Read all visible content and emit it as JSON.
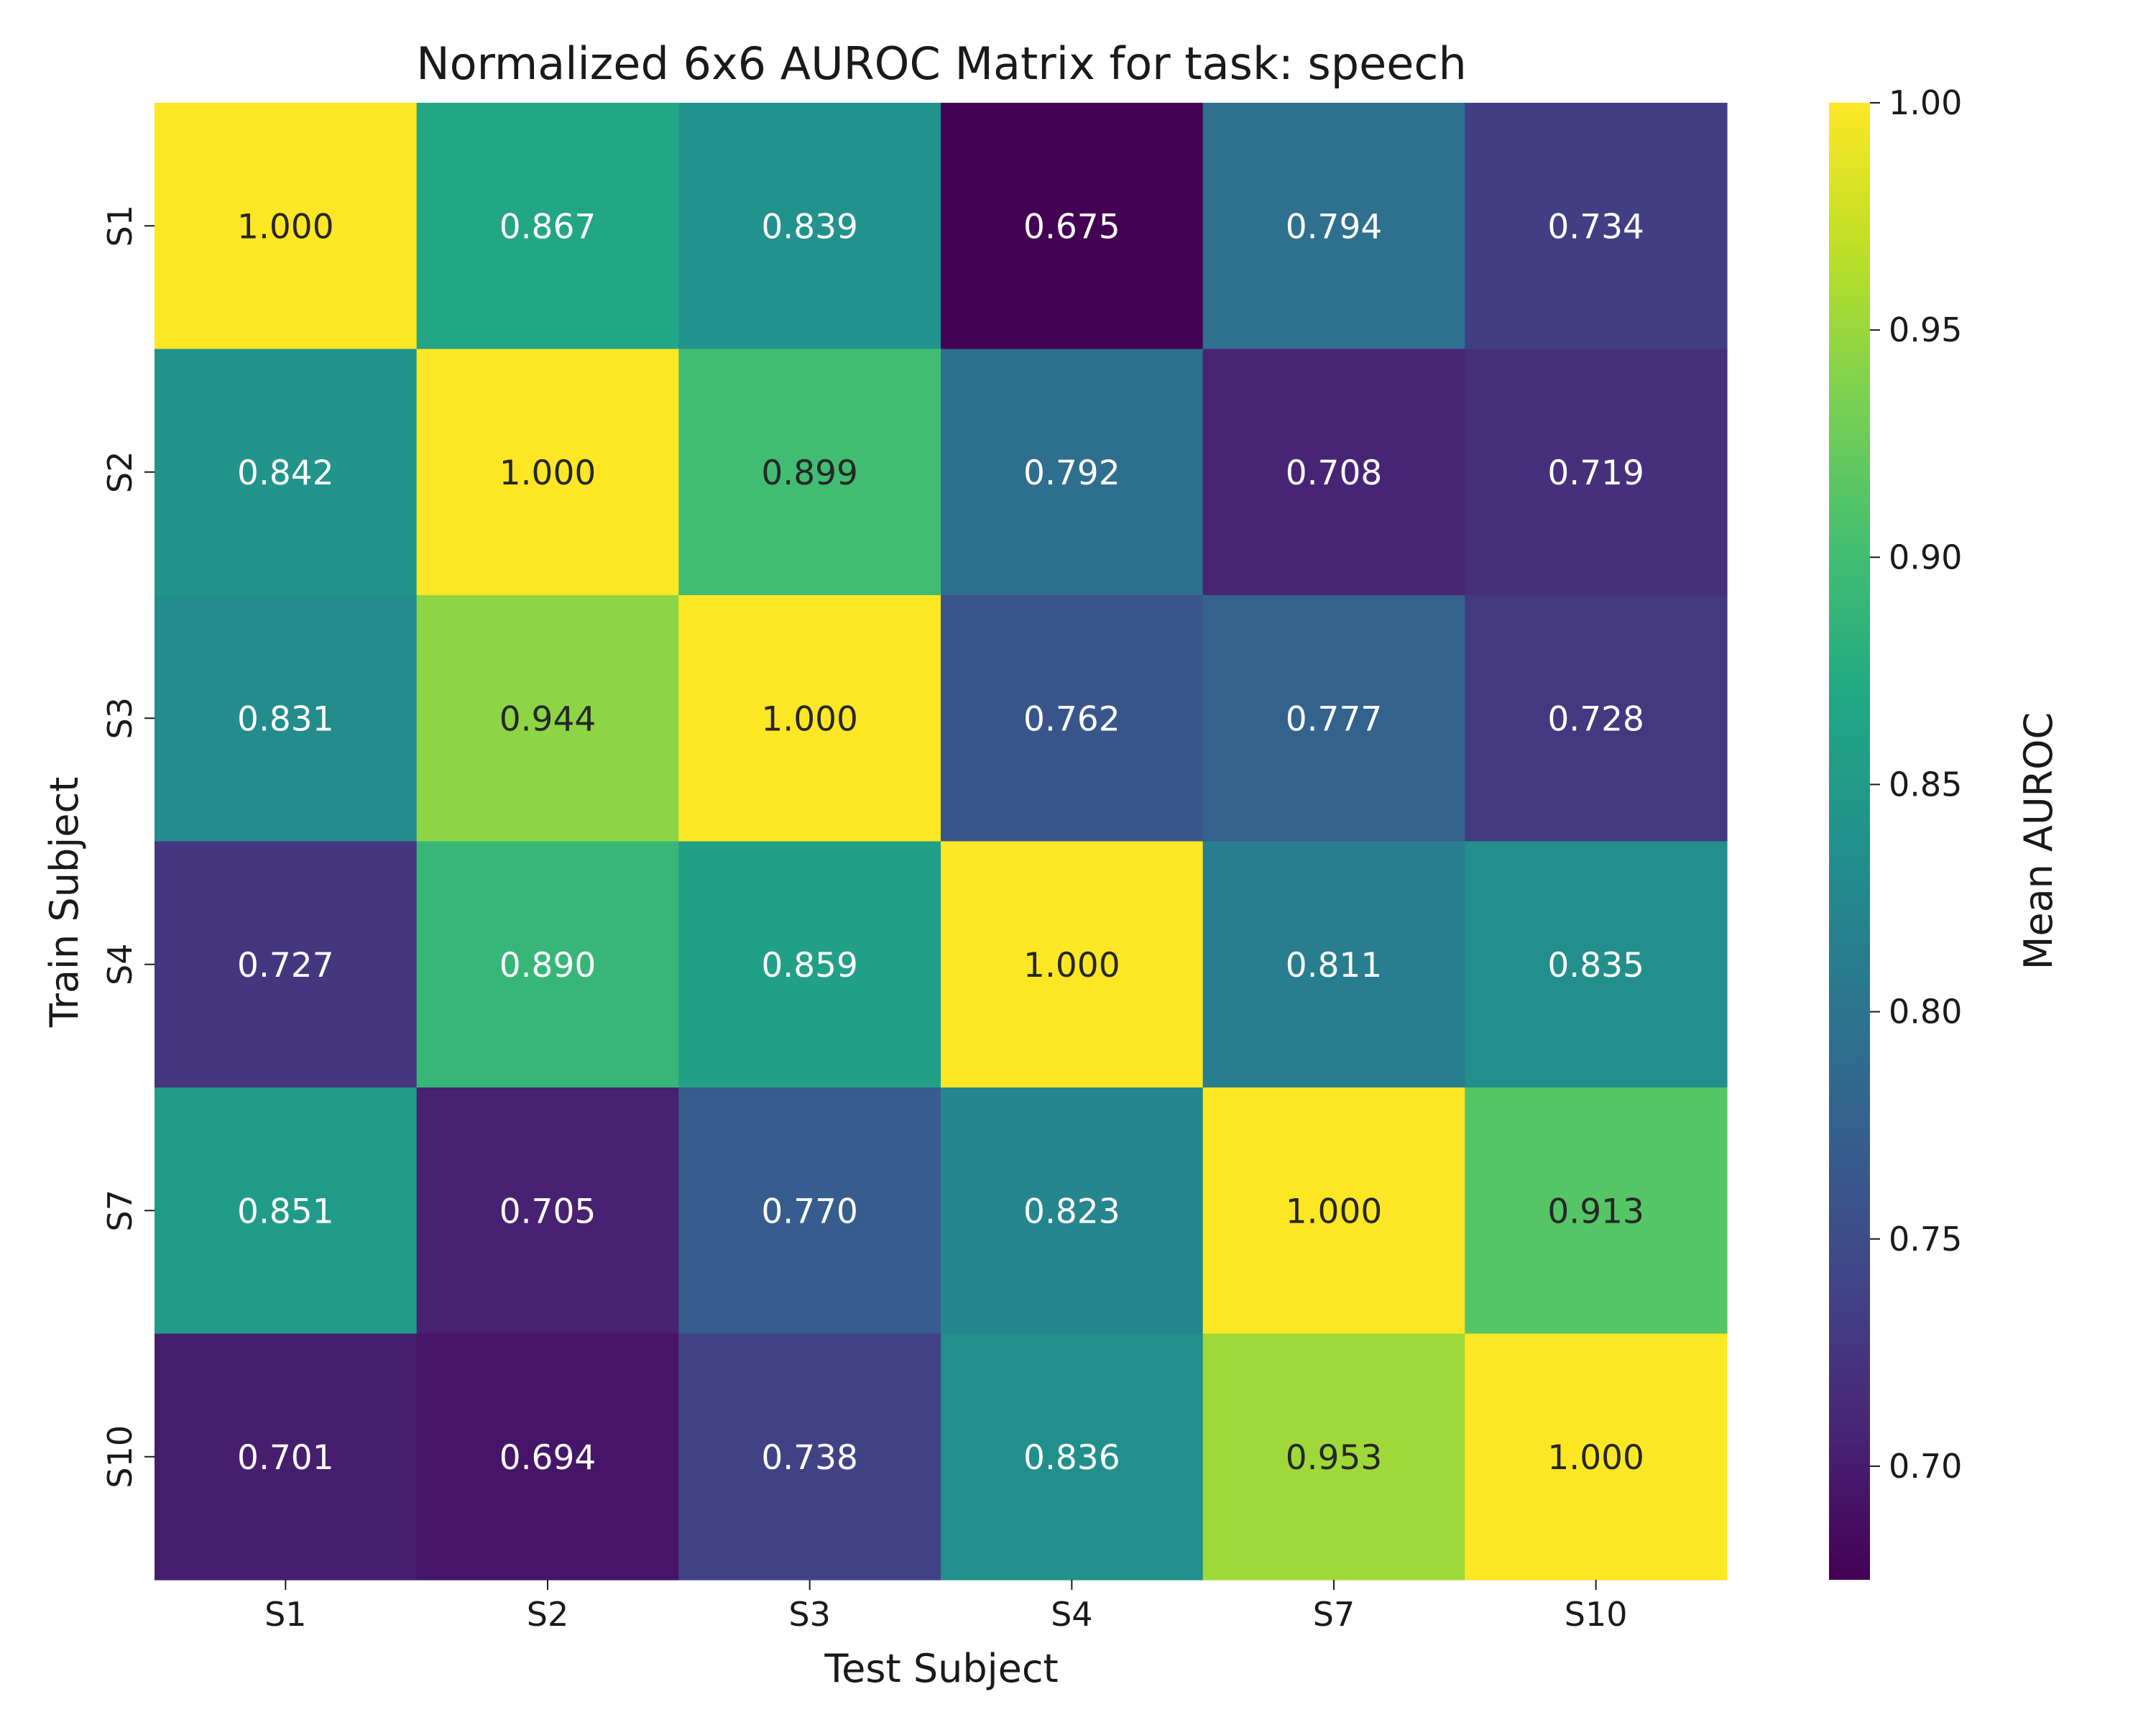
{
  "chart_data": {
    "type": "heatmap",
    "title": "Normalized 6x6 AUROC Matrix for task: speech",
    "xlabel": "Test Subject",
    "ylabel": "Train Subject",
    "x_categories": [
      "S1",
      "S2",
      "S3",
      "S4",
      "S7",
      "S10"
    ],
    "y_categories": [
      "S1",
      "S2",
      "S3",
      "S4",
      "S7",
      "S10"
    ],
    "values": [
      [
        1.0,
        0.867,
        0.839,
        0.675,
        0.794,
        0.734
      ],
      [
        0.842,
        1.0,
        0.899,
        0.792,
        0.708,
        0.719
      ],
      [
        0.831,
        0.944,
        1.0,
        0.762,
        0.777,
        0.728
      ],
      [
        0.727,
        0.89,
        0.859,
        1.0,
        0.811,
        0.835
      ],
      [
        0.851,
        0.705,
        0.77,
        0.823,
        1.0,
        0.913
      ],
      [
        0.701,
        0.694,
        0.738,
        0.836,
        0.953,
        1.0
      ]
    ],
    "colormap": "viridis",
    "vmin": 0.675,
    "vmax": 1.0,
    "value_format": "3 decimals",
    "colorbar": {
      "label": "Mean AUROC",
      "ticks": [
        0.7,
        0.75,
        0.8,
        0.85,
        0.9,
        0.95,
        1.0
      ],
      "tick_labels": [
        "0.70",
        "0.75",
        "0.80",
        "0.85",
        "0.90",
        "0.95",
        "1.00"
      ]
    }
  }
}
